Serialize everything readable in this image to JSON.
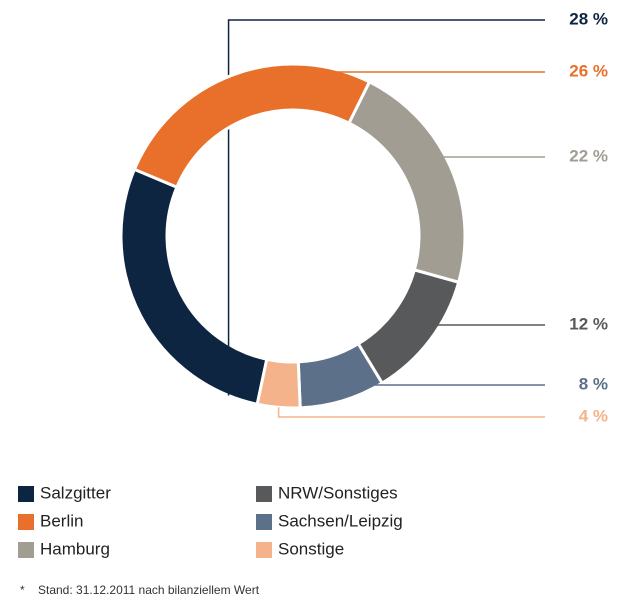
{
  "chart_data": {
    "type": "donut",
    "categories": [
      "Salzgitter",
      "Berlin",
      "Hamburg",
      "NRW/Sonstiges",
      "Sachsen/Leipzig",
      "Sonstige"
    ],
    "values": [
      28,
      26,
      22,
      12,
      8,
      4
    ],
    "value_labels": [
      "28 %",
      "26 %",
      "22 %",
      "12 %",
      "8 %",
      "4 %"
    ],
    "colors": [
      "#0e2542",
      "#e8702a",
      "#a19d92",
      "#58595b",
      "#5c7089",
      "#f4b38a"
    ],
    "footnote_marker": "*",
    "footnote": "Stand: 31.12.2011 nach bilanziellem Wert"
  }
}
